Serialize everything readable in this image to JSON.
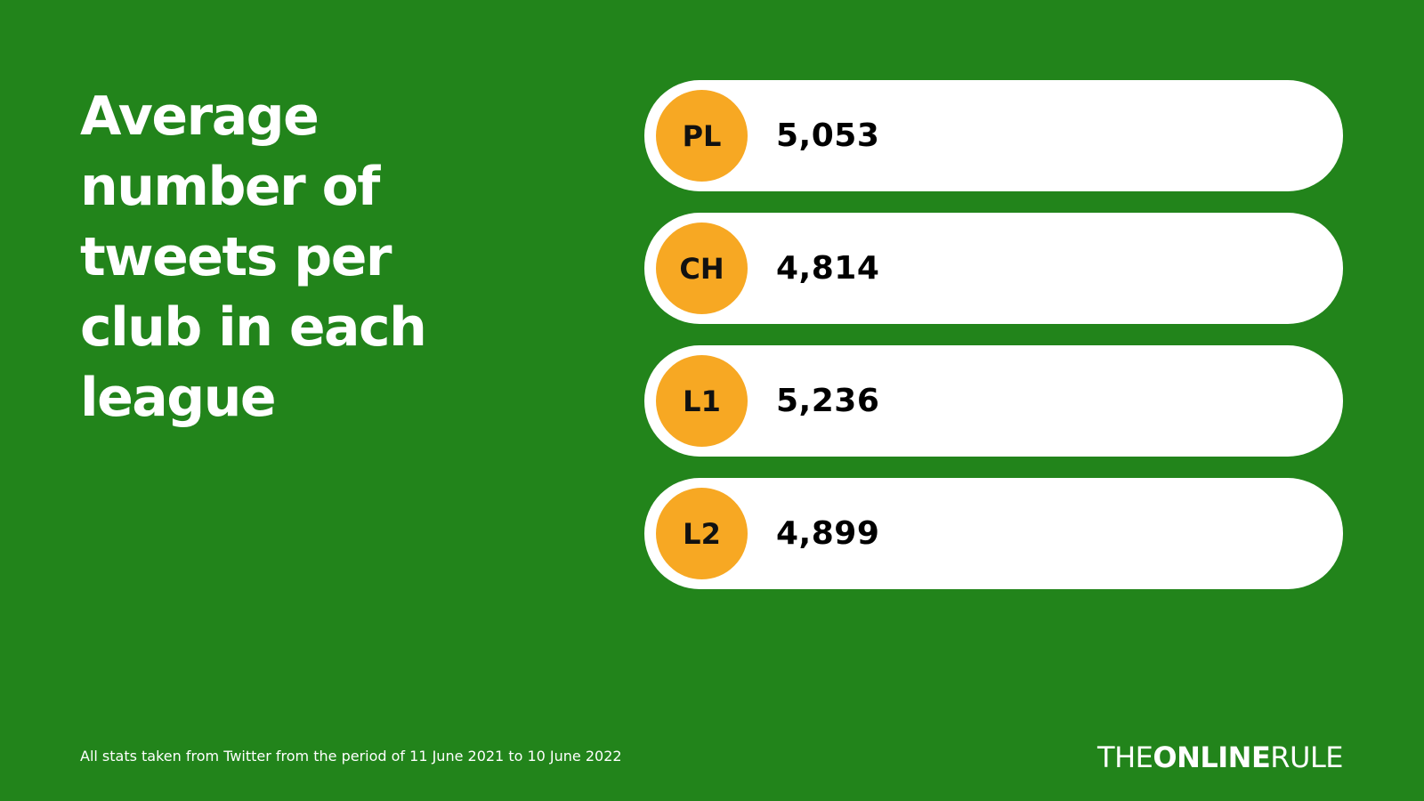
{
  "header": {
    "title": "Average number of tweets per club in each league"
  },
  "rows": [
    {
      "label": "PL",
      "value": "5,053"
    },
    {
      "label": "CH",
      "value": "4,814"
    },
    {
      "label": "L1",
      "value": "5,236"
    },
    {
      "label": "L2",
      "value": "4,899"
    }
  ],
  "footer": {
    "note": "All stats taken from Twitter from the period of 11 June 2021 to 10 June 2022",
    "brand": {
      "light_start": "THE",
      "bold": "ONLINE",
      "light_end": "RULE"
    }
  }
}
